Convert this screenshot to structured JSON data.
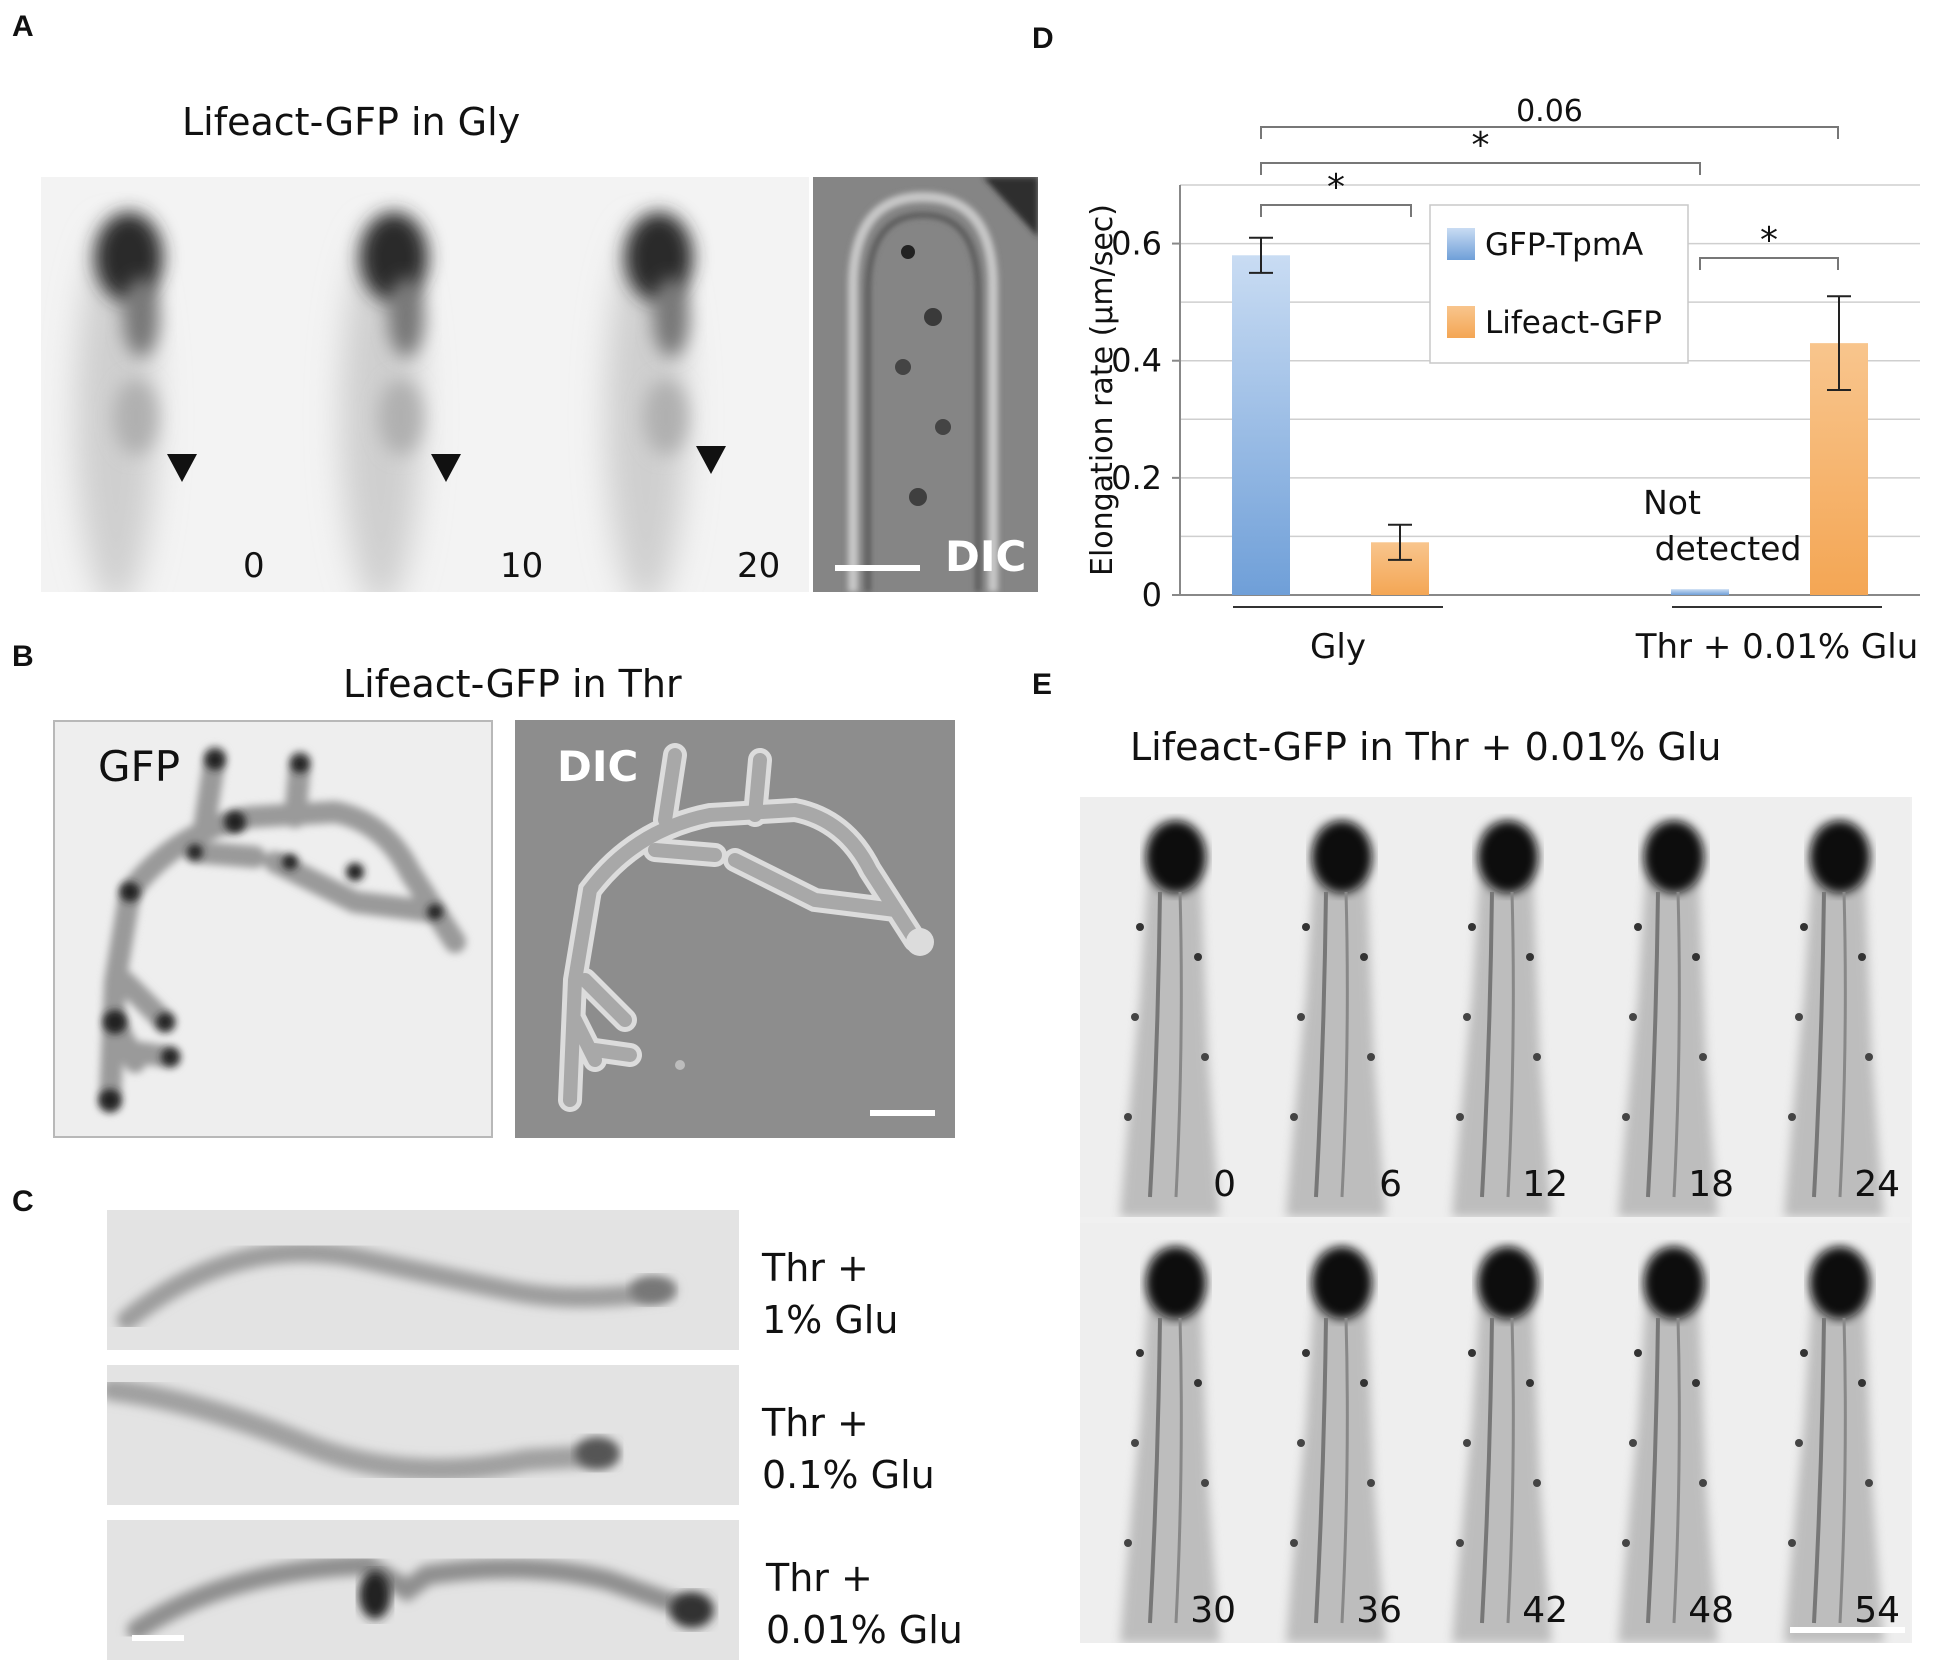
{
  "figure": {
    "panels": {
      "A": {
        "label": "A",
        "title": "Lifeact-GFP in Gly",
        "frames": [
          "0",
          "10",
          "20"
        ],
        "dic_label": "DIC"
      },
      "B": {
        "label": "B",
        "title": "Lifeact-GFP in Thr",
        "gfp_label": "GFP",
        "dic_label": "DIC"
      },
      "C": {
        "label": "C",
        "conditions": [
          {
            "line1": "Thr +",
            "line2": "1% Glu"
          },
          {
            "line1": "Thr +",
            "line2": "0.1% Glu"
          },
          {
            "line1": "Thr +",
            "line2": "0.01% Glu"
          }
        ]
      },
      "D": {
        "label": "D"
      },
      "E": {
        "label": "E",
        "title": "Lifeact-GFP in Thr + 0.01% Glu",
        "frames_top": [
          "0",
          "6",
          "12",
          "18",
          "24"
        ],
        "frames_bottom": [
          "30",
          "36",
          "42",
          "48",
          "54"
        ]
      }
    }
  },
  "chart_data": {
    "type": "bar",
    "ylabel": "Elongation rate (µm/sec)",
    "ylim": [
      0,
      0.7
    ],
    "yticks": [
      "0",
      "0.2",
      "0.4",
      "0.6"
    ],
    "grid": true,
    "legend_position": "top-center",
    "categories": [
      "Gly",
      "Thr + 0.01% Glu"
    ],
    "series": [
      {
        "name": "GFP-TpmA",
        "values": [
          0.58,
          0.01
        ],
        "errors": [
          0.03,
          0.0
        ],
        "color": "#6f9fd8"
      },
      {
        "name": "Lifeact-GFP",
        "values": [
          0.09,
          0.43
        ],
        "errors": [
          0.03,
          0.08
        ],
        "color": "#f4a654"
      }
    ],
    "annotations": {
      "not_detected_line1": "Not",
      "not_detected_line2": "detected",
      "sig_gly": "*",
      "sig_thr": "*",
      "sig_mid": "*",
      "sig_top": "0.06"
    }
  }
}
